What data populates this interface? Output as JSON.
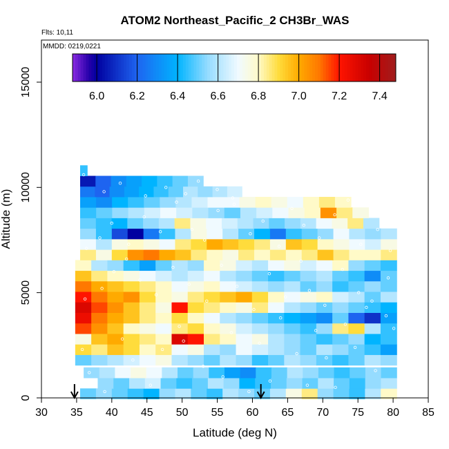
{
  "chart_data": {
    "type": "heatmap",
    "title": "ATOM2 Northeast_Pacific_2 CH3Br_WAS",
    "flights_note": "Flts: 10,11",
    "mmdd_note": "MMDD: 0219,0221",
    "xlabel": "Latitude (deg N)",
    "ylabel": "Altitude (m)",
    "xlim": [
      30,
      85
    ],
    "ylim": [
      0,
      17000
    ],
    "x_ticks": [
      "30",
      "35",
      "40",
      "45",
      "50",
      "55",
      "60",
      "65",
      "70",
      "75",
      "80",
      "85"
    ],
    "y_ticks": [
      {
        "value": 0,
        "label": "0"
      },
      {
        "value": 5000,
        "label": "5000"
      },
      {
        "value": 10000,
        "label": "10000"
      },
      {
        "value": 15000,
        "label": "15000"
      }
    ],
    "colorbar": {
      "min": 5.88,
      "max": 7.48,
      "ticks": [
        "6.0",
        "6.2",
        "6.4",
        "6.6",
        "6.8",
        "7.0",
        "7.2",
        "7.4"
      ]
    },
    "arrows_lat": [
      34.7,
      61.2
    ],
    "layers": [
      {
        "alt": 200,
        "lat_start": 35.5,
        "lat_end": 80.5,
        "values": [
          6.5,
          6.55,
          6.5,
          6.45,
          6.4,
          6.55,
          6.6,
          6.5,
          6.45,
          6.6,
          6.55,
          6.5,
          6.6,
          6.75,
          6.85,
          6.55,
          6.5,
          6.45,
          6.6,
          6.8
        ]
      },
      {
        "alt": 700,
        "lat_start": 38.0,
        "lat_end": 80.5,
        "values": [
          6.55,
          6.5,
          6.6,
          6.65,
          6.5,
          6.45,
          6.5,
          6.6,
          6.55,
          6.4,
          6.45,
          6.5,
          6.55,
          6.5,
          6.6,
          6.5,
          6.45,
          6.55,
          6.6
        ]
      },
      {
        "alt": 1200,
        "lat_start": 36.0,
        "lat_end": 80.5,
        "values": [
          6.55,
          6.6,
          6.7,
          6.75,
          6.7,
          6.6,
          6.5,
          6.55,
          6.45,
          6.35,
          6.3,
          6.45,
          6.5,
          6.6,
          6.55,
          6.5,
          6.45,
          6.5,
          6.55,
          6.5
        ]
      },
      {
        "alt": 1800,
        "lat_start": 34.8,
        "lat_end": 80.5,
        "values": [
          6.5,
          6.55,
          6.6,
          6.65,
          6.7,
          6.75,
          6.6,
          6.55,
          6.5,
          6.6,
          6.55,
          6.45,
          6.5,
          6.6,
          6.55,
          6.5,
          6.45,
          6.5,
          6.6,
          6.55
        ]
      },
      {
        "alt": 2300,
        "lat_start": 34.8,
        "lat_end": 80.5,
        "values": [
          6.9,
          6.85,
          6.95,
          6.9,
          6.8,
          6.85,
          6.7,
          6.75,
          6.6,
          6.55,
          6.7,
          6.65,
          6.6,
          6.55,
          6.5,
          6.6,
          6.55,
          6.5,
          6.45,
          6.35
        ]
      },
      {
        "alt": 2800,
        "lat_start": 34.8,
        "lat_end": 80.5,
        "values": [
          6.75,
          6.95,
          7.0,
          6.9,
          6.85,
          6.8,
          7.3,
          7.2,
          6.85,
          6.8,
          6.7,
          6.75,
          6.6,
          6.55,
          6.5,
          6.45,
          6.5,
          6.55,
          6.4,
          6.45
        ]
      },
      {
        "alt": 3300,
        "lat_start": 34.8,
        "lat_end": 80.5,
        "values": [
          7.15,
          7.05,
          6.95,
          6.8,
          6.75,
          6.7,
          6.85,
          6.9,
          6.8,
          6.75,
          6.65,
          6.6,
          6.55,
          6.5,
          6.45,
          6.55,
          6.85,
          6.9,
          6.6,
          6.45
        ]
      },
      {
        "alt": 3800,
        "lat_start": 34.8,
        "lat_end": 80.5,
        "values": [
          7.25,
          7.1,
          7.0,
          6.95,
          6.85,
          6.8,
          6.9,
          6.8,
          6.7,
          6.6,
          6.55,
          6.5,
          6.45,
          6.4,
          6.35,
          6.3,
          6.5,
          6.2,
          6.1,
          6.35
        ]
      },
      {
        "alt": 4300,
        "lat_start": 34.8,
        "lat_end": 80.5,
        "values": [
          7.3,
          7.15,
          7.05,
          6.95,
          6.85,
          6.75,
          7.2,
          6.9,
          6.85,
          6.8,
          6.75,
          6.85,
          6.7,
          6.6,
          6.55,
          6.5,
          6.55,
          6.5,
          6.45,
          6.4
        ]
      },
      {
        "alt": 4800,
        "lat_start": 34.8,
        "lat_end": 80.5,
        "values": [
          7.2,
          7.1,
          7.0,
          7.05,
          6.9,
          6.8,
          6.75,
          6.85,
          6.9,
          6.95,
          7.0,
          6.9,
          6.8,
          6.7,
          6.75,
          6.8,
          6.65,
          6.6,
          6.5,
          6.6
        ]
      },
      {
        "alt": 5300,
        "lat_start": 34.8,
        "lat_end": 80.5,
        "values": [
          7.1,
          7.0,
          6.95,
          6.9,
          6.85,
          6.8,
          6.7,
          6.75,
          6.8,
          6.7,
          6.65,
          6.6,
          6.55,
          6.6,
          6.5,
          6.55,
          6.45,
          6.5,
          6.55,
          6.5
        ]
      },
      {
        "alt": 5800,
        "lat_start": 34.8,
        "lat_end": 80.5,
        "values": [
          6.95,
          6.85,
          6.8,
          6.75,
          6.7,
          6.65,
          6.6,
          6.65,
          6.7,
          6.6,
          6.55,
          6.5,
          6.45,
          6.5,
          6.55,
          6.6,
          6.5,
          6.45,
          6.3,
          6.5
        ]
      },
      {
        "alt": 6300,
        "lat_start": 34.8,
        "lat_end": 80.5,
        "values": [
          6.8,
          6.6,
          6.55,
          6.45,
          6.35,
          6.5,
          6.6,
          6.55,
          6.8,
          6.75,
          6.65,
          6.6,
          6.7,
          6.75,
          6.65,
          6.7,
          6.8,
          6.55,
          6.5,
          6.45
        ]
      },
      {
        "alt": 6800,
        "lat_start": 35.5,
        "lat_end": 80.5,
        "values": [
          6.85,
          6.75,
          6.9,
          7.05,
          7.1,
          7.0,
          6.95,
          6.85,
          6.8,
          6.75,
          6.85,
          6.8,
          6.85,
          6.8,
          6.85,
          6.95,
          6.85,
          6.8,
          6.8,
          6.85
        ]
      },
      {
        "alt": 7300,
        "lat_start": 35.5,
        "lat_end": 80.5,
        "values": [
          6.7,
          6.6,
          6.75,
          6.8,
          6.75,
          6.7,
          6.85,
          6.9,
          7.0,
          6.95,
          6.9,
          6.85,
          6.75,
          6.95,
          6.9,
          6.8,
          6.75,
          6.7,
          6.65,
          6.75
        ]
      },
      {
        "alt": 7800,
        "lat_start": 35.5,
        "lat_end": 80.5,
        "values": [
          6.55,
          6.45,
          6.15,
          6.0,
          6.25,
          6.45,
          6.6,
          6.75,
          6.7,
          6.6,
          6.5,
          6.4,
          6.25,
          6.45,
          6.5,
          6.55,
          6.7,
          6.6,
          6.55,
          6.6
        ]
      },
      {
        "alt": 8300,
        "lat_start": 35.5,
        "lat_end": 78.0,
        "values": [
          6.5,
          6.45,
          6.4,
          6.5,
          6.55,
          6.6,
          6.85,
          6.75,
          6.7,
          6.65,
          6.6,
          6.55,
          6.5,
          6.55,
          6.6,
          6.7,
          6.75,
          6.85,
          6.6
        ]
      },
      {
        "alt": 8800,
        "lat_start": 35.5,
        "lat_end": 76.5,
        "values": [
          6.45,
          6.5,
          6.55,
          6.6,
          6.65,
          6.7,
          6.65,
          6.6,
          6.55,
          6.5,
          6.6,
          6.65,
          6.7,
          6.75,
          6.8,
          7.05,
          6.85,
          6.75
        ]
      },
      {
        "alt": 9300,
        "lat_start": 35.5,
        "lat_end": 74.0,
        "values": [
          6.35,
          6.3,
          6.4,
          6.45,
          6.5,
          6.55,
          6.6,
          6.65,
          6.7,
          6.7,
          6.75,
          6.8,
          6.75,
          6.7,
          6.8,
          6.85,
          6.8
        ]
      },
      {
        "alt": 9800,
        "lat_start": 35.5,
        "lat_end": 58.5,
        "values": [
          6.25,
          6.2,
          6.3,
          6.35,
          6.4,
          6.45,
          6.5,
          6.6,
          6.55,
          6.6,
          6.65
        ]
      },
      {
        "alt": 10300,
        "lat_start": 35.5,
        "lat_end": 53.0,
        "values": [
          6.05,
          6.2,
          6.3,
          6.35,
          6.4,
          6.45,
          6.5,
          6.55
        ]
      },
      {
        "alt": 10800,
        "lat_start": 35.5,
        "lat_end": 36.5,
        "values": [
          6.45
        ]
      }
    ],
    "samples": [
      [
        35.8,
        2300
      ],
      [
        36.8,
        1200
      ],
      [
        39.0,
        300
      ],
      [
        41.5,
        2800
      ],
      [
        43.0,
        1800
      ],
      [
        45.5,
        600
      ],
      [
        47.2,
        2300
      ],
      [
        49.6,
        3400
      ],
      [
        50.2,
        2700
      ],
      [
        53.0,
        1500
      ],
      [
        55.8,
        1000
      ],
      [
        57.0,
        3100
      ],
      [
        59.5,
        300
      ],
      [
        61.0,
        2600
      ],
      [
        62.5,
        800
      ],
      [
        64.0,
        3800
      ],
      [
        66.3,
        2100
      ],
      [
        67.8,
        600
      ],
      [
        69.0,
        3200
      ],
      [
        70.5,
        1900
      ],
      [
        71.8,
        500
      ],
      [
        73.2,
        3500
      ],
      [
        74.6,
        2400
      ],
      [
        76.2,
        4300
      ],
      [
        77.5,
        1300
      ],
      [
        79.0,
        3900
      ],
      [
        80.1,
        3300
      ],
      [
        36.2,
        4700
      ],
      [
        38.6,
        5200
      ],
      [
        40.3,
        6000
      ],
      [
        42.1,
        6600
      ],
      [
        44.0,
        5600
      ],
      [
        46.3,
        4900
      ],
      [
        48.7,
        6200
      ],
      [
        51.0,
        5400
      ],
      [
        53.5,
        4600
      ],
      [
        55.6,
        6300
      ],
      [
        57.8,
        5300
      ],
      [
        60.2,
        4200
      ],
      [
        62.4,
        5900
      ],
      [
        64.7,
        4800
      ],
      [
        66.9,
        6500
      ],
      [
        68.1,
        5100
      ],
      [
        70.3,
        4400
      ],
      [
        72.8,
        6100
      ],
      [
        75.1,
        5000
      ],
      [
        77.0,
        4600
      ],
      [
        79.3,
        5700
      ],
      [
        36.4,
        7100
      ],
      [
        38.3,
        7600
      ],
      [
        40.0,
        8300
      ],
      [
        42.4,
        7300
      ],
      [
        44.6,
        8600
      ],
      [
        46.9,
        7900
      ],
      [
        49.2,
        9300
      ],
      [
        51.4,
        8000
      ],
      [
        53.2,
        7500
      ],
      [
        55.1,
        8900
      ],
      [
        57.4,
        9200
      ],
      [
        59.7,
        7800
      ],
      [
        61.5,
        8400
      ],
      [
        63.8,
        7200
      ],
      [
        65.6,
        9000
      ],
      [
        67.3,
        8200
      ],
      [
        69.5,
        7600
      ],
      [
        71.7,
        8700
      ],
      [
        73.6,
        9400
      ],
      [
        75.4,
        7300
      ],
      [
        77.8,
        8000
      ],
      [
        79.6,
        7000
      ],
      [
        36.0,
        10600
      ],
      [
        38.9,
        9800
      ],
      [
        41.2,
        10200
      ],
      [
        44.8,
        9600
      ],
      [
        47.7,
        10000
      ],
      [
        50.5,
        9700
      ],
      [
        52.3,
        10300
      ],
      [
        55.0,
        9900
      ],
      [
        57.2,
        9500
      ]
    ]
  }
}
